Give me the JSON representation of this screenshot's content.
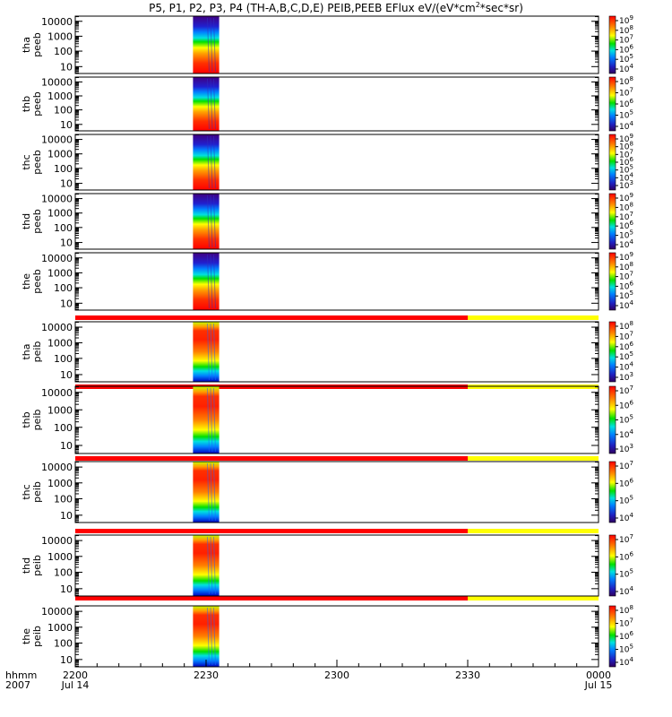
{
  "chart_data": {
    "type": "heatmap",
    "title": "P5, P1, P2, P3, P4 (TH-A,B,C,D,E) PEIB,PEEB EFlux eV/(eV*cm",
    "title_sup": "2",
    "title_end": "*sec*sr)",
    "x_time_labels": [
      {
        "t": 0,
        "hhmm": "2200",
        "date": "Jul 14"
      },
      {
        "t": 30,
        "hhmm": "2230",
        "date": ""
      },
      {
        "t": 60,
        "hhmm": "2300",
        "date": ""
      },
      {
        "t": 90,
        "hhmm": "2330",
        "date": ""
      },
      {
        "t": 120,
        "hhmm": "0000",
        "date": "Jul 15"
      }
    ],
    "x_axis_caption": {
      "line1": "hhmm",
      "line2": "2007"
    },
    "x_range_minutes": [
      0,
      120
    ],
    "y_scale": "log",
    "y_ticks": [
      "10",
      "100",
      "1000",
      "10000"
    ],
    "data_window_minutes": [
      27,
      33
    ],
    "panels": [
      {
        "probe": "tha",
        "inst": "peeb",
        "kind": "electron",
        "colorbar": [
          {
            "base": "10",
            "exp": "4"
          },
          {
            "base": "10",
            "exp": "5"
          },
          {
            "base": "10",
            "exp": "6"
          },
          {
            "base": "10",
            "exp": "7"
          },
          {
            "base": "10",
            "exp": "8"
          },
          {
            "base": "10",
            "exp": "9"
          }
        ]
      },
      {
        "probe": "thb",
        "inst": "peeb",
        "kind": "electron",
        "colorbar": [
          {
            "base": "10",
            "exp": "4"
          },
          {
            "base": "10",
            "exp": "5"
          },
          {
            "base": "10",
            "exp": "6"
          },
          {
            "base": "10",
            "exp": "7"
          },
          {
            "base": "10",
            "exp": "8"
          }
        ]
      },
      {
        "probe": "thc",
        "inst": "peeb",
        "kind": "electron",
        "colorbar": [
          {
            "base": "10",
            "exp": "3"
          },
          {
            "base": "10",
            "exp": "4"
          },
          {
            "base": "10",
            "exp": "5"
          },
          {
            "base": "10",
            "exp": "6"
          },
          {
            "base": "10",
            "exp": "7"
          },
          {
            "base": "10",
            "exp": "8"
          },
          {
            "base": "10",
            "exp": "9"
          }
        ]
      },
      {
        "probe": "thd",
        "inst": "peeb",
        "kind": "electron",
        "colorbar": [
          {
            "base": "10",
            "exp": "4"
          },
          {
            "base": "10",
            "exp": "5"
          },
          {
            "base": "10",
            "exp": "6"
          },
          {
            "base": "10",
            "exp": "7"
          },
          {
            "base": "10",
            "exp": "8"
          },
          {
            "base": "10",
            "exp": "9"
          }
        ]
      },
      {
        "probe": "the",
        "inst": "peeb",
        "kind": "electron",
        "colorbar": [
          {
            "base": "10",
            "exp": "4"
          },
          {
            "base": "10",
            "exp": "5"
          },
          {
            "base": "10",
            "exp": "6"
          },
          {
            "base": "10",
            "exp": "7"
          },
          {
            "base": "10",
            "exp": "8"
          },
          {
            "base": "10",
            "exp": "9"
          }
        ]
      },
      {
        "probe": "tha",
        "inst": "peib",
        "kind": "ion",
        "colorbar": [
          {
            "base": "10",
            "exp": "3"
          },
          {
            "base": "10",
            "exp": "4"
          },
          {
            "base": "10",
            "exp": "5"
          },
          {
            "base": "10",
            "exp": "6"
          },
          {
            "base": "10",
            "exp": "7"
          },
          {
            "base": "10",
            "exp": "8"
          }
        ]
      },
      {
        "probe": "thb",
        "inst": "peib",
        "kind": "ion",
        "colorbar": [
          {
            "base": "10",
            "exp": "3"
          },
          {
            "base": "10",
            "exp": "4"
          },
          {
            "base": "10",
            "exp": "5"
          },
          {
            "base": "10",
            "exp": "6"
          },
          {
            "base": "10",
            "exp": "7"
          }
        ]
      },
      {
        "probe": "thc",
        "inst": "peib",
        "kind": "ion",
        "colorbar": [
          {
            "base": "10",
            "exp": "4"
          },
          {
            "base": "10",
            "exp": "5"
          },
          {
            "base": "10",
            "exp": "6"
          },
          {
            "base": "10",
            "exp": "7"
          }
        ]
      },
      {
        "probe": "thd",
        "inst": "peib",
        "kind": "ion",
        "colorbar": [
          {
            "base": "10",
            "exp": "4"
          },
          {
            "base": "10",
            "exp": "5"
          },
          {
            "base": "10",
            "exp": "6"
          },
          {
            "base": "10",
            "exp": "7"
          }
        ]
      },
      {
        "probe": "the",
        "inst": "peib",
        "kind": "ion",
        "colorbar": [
          {
            "base": "10",
            "exp": "4"
          },
          {
            "base": "10",
            "exp": "5"
          },
          {
            "base": "10",
            "exp": "6"
          },
          {
            "base": "10",
            "exp": "7"
          },
          {
            "base": "10",
            "exp": "8"
          }
        ]
      }
    ],
    "status_bars": [
      {
        "red_until_minutes": 90,
        "colors": [
          "#ff0000",
          "#ffff00"
        ]
      },
      {
        "red_until_minutes": 90,
        "colors": [
          "#ff0000",
          "#ffff00"
        ]
      },
      {
        "red_until_minutes": 90,
        "colors": [
          "#ff0000",
          "#ffff00"
        ]
      },
      {
        "red_until_minutes": 90,
        "colors": [
          "#ff0000",
          "#ffff00"
        ]
      },
      {
        "red_until_minutes": 90,
        "colors": [
          "#ff0000",
          "#ffff00"
        ]
      }
    ]
  }
}
